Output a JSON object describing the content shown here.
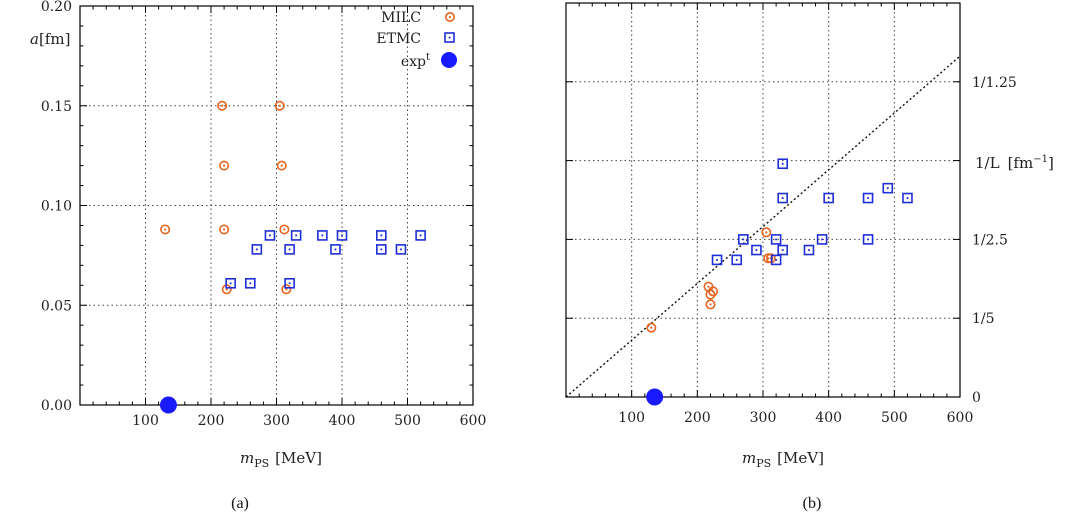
{
  "chart_data": [
    {
      "panel": "(a)",
      "type": "scatter",
      "xlabel": "m_PS [MeV]",
      "ylabel": "a[fm]",
      "xlim": [
        0,
        600
      ],
      "ylim": [
        0,
        0.2
      ],
      "x_ticks": [
        "100",
        "200",
        "300",
        "400",
        "500",
        "600"
      ],
      "y_ticks": [
        "0.00",
        "0.05",
        "0.10",
        "0.15",
        "0.20"
      ],
      "grid": true,
      "legend_position": "top-right",
      "series": [
        {
          "name": "MILC",
          "marker": "circle-dot",
          "color": "#e8641e",
          "points": [
            [
              130,
              0.088
            ],
            [
              217,
              0.15
            ],
            [
              220,
              0.12
            ],
            [
              220,
              0.088
            ],
            [
              224,
              0.058
            ],
            [
              305,
              0.15
            ],
            [
              308,
              0.12
            ],
            [
              312,
              0.088
            ],
            [
              315,
              0.058
            ]
          ]
        },
        {
          "name": "ETMC",
          "marker": "square-dot",
          "color": "#1f2fd6",
          "points": [
            [
              230,
              0.061
            ],
            [
              260,
              0.061
            ],
            [
              270,
              0.078
            ],
            [
              290,
              0.085
            ],
            [
              320,
              0.061
            ],
            [
              320,
              0.078
            ],
            [
              330,
              0.085
            ],
            [
              370,
              0.085
            ],
            [
              390,
              0.078
            ],
            [
              400,
              0.085
            ],
            [
              460,
              0.085
            ],
            [
              460,
              0.078
            ],
            [
              490,
              0.078
            ],
            [
              520,
              0.085
            ]
          ]
        },
        {
          "name": "exp^t",
          "marker": "filled-circle",
          "color": "#1a1aff",
          "points": [
            [
              135,
              0.0
            ]
          ]
        }
      ]
    },
    {
      "panel": "(b)",
      "type": "scatter",
      "xlabel": "m_PS [MeV]",
      "ylabel": "1/L [fm^-1]",
      "xlim": [
        0,
        600
      ],
      "ylim": [
        0,
        1
      ],
      "x_ticks": [
        "100",
        "200",
        "300",
        "400",
        "500",
        "600"
      ],
      "y_ticks": [
        "0",
        "1/5",
        "1/2.5",
        "1/1.25"
      ],
      "y_tick_values": [
        0,
        0.2,
        0.4,
        0.8
      ],
      "grid": true,
      "reference_line": {
        "style": "dotted",
        "from": [
          0,
          0
        ],
        "to": [
          600,
          0.865
        ]
      },
      "series": [
        {
          "name": "MILC",
          "marker": "circle-dot",
          "color": "#e8641e",
          "points": [
            [
              130,
              0.176
            ],
            [
              217,
              0.28
            ],
            [
              220,
              0.26
            ],
            [
              220,
              0.235
            ],
            [
              224,
              0.268
            ],
            [
              305,
              0.418
            ],
            [
              308,
              0.352
            ],
            [
              312,
              0.352
            ]
          ]
        },
        {
          "name": "ETMC",
          "marker": "square-dot",
          "color": "#1f2fd6",
          "points": [
            [
              230,
              0.348
            ],
            [
              260,
              0.348
            ],
            [
              270,
              0.4
            ],
            [
              290,
              0.373
            ],
            [
              320,
              0.348
            ],
            [
              320,
              0.4
            ],
            [
              330,
              0.373
            ],
            [
              330,
              0.592
            ],
            [
              330,
              0.505
            ],
            [
              370,
              0.373
            ],
            [
              390,
              0.4
            ],
            [
              400,
              0.505
            ],
            [
              460,
              0.505
            ],
            [
              460,
              0.4
            ],
            [
              490,
              0.53
            ],
            [
              520,
              0.505
            ]
          ]
        },
        {
          "name": "exp^t",
          "marker": "filled-circle",
          "color": "#1a1aff",
          "points": [
            [
              135,
              0.0
            ]
          ]
        }
      ]
    }
  ],
  "panel_a": {
    "caption": "(a)",
    "xlabel_main": "m",
    "xlabel_sub": "PS",
    "xlabel_unit": "[MeV]",
    "ylabel_main": "a",
    "ylabel_unit": "[fm]",
    "legend": {
      "milc": "MILC",
      "etmc": "ETMC",
      "exp": "exp",
      "exp_sup": "t"
    }
  },
  "panel_b": {
    "caption": "(b)",
    "xlabel_main": "m",
    "xlabel_sub": "PS",
    "xlabel_unit": "[MeV]",
    "ylabel_main": "1/L",
    "ylabel_unit": "[fm",
    "ylabel_sup": "−1",
    "ylabel_close": "]"
  }
}
